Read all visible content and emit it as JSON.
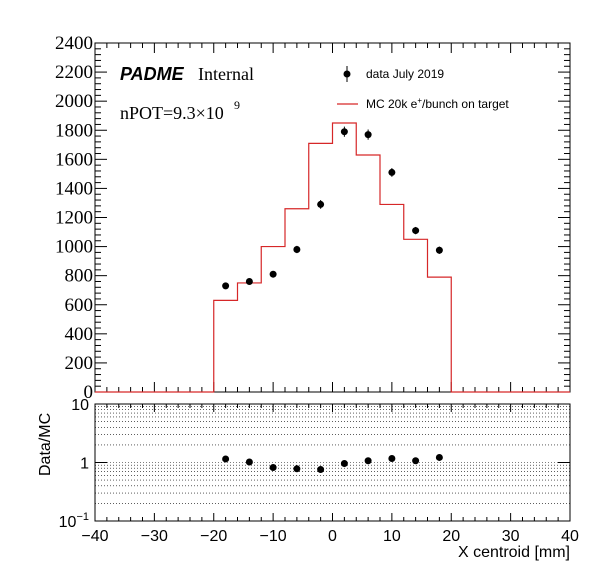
{
  "chart_data": [
    {
      "type": "histogram-with-points",
      "xlim": [
        -40,
        40
      ],
      "ylim": [
        0,
        2400
      ],
      "yticks": [
        0,
        200,
        400,
        600,
        800,
        1000,
        1200,
        1400,
        1600,
        1800,
        2000,
        2200,
        2400
      ],
      "labels": {
        "brand": "PADME",
        "brand_suffix": "Internal",
        "npot_base": "nPOT=9.3×10",
        "npot_exp": "9"
      },
      "legend": [
        {
          "name": "data July 2019",
          "marker": "point",
          "color": "#000000"
        },
        {
          "name_prefix": "MC 20k e",
          "name_sup": "+",
          "name_suffix": "/bunch on target",
          "marker": "line",
          "color": "#d62728"
        }
      ],
      "mc_histogram": {
        "color": "#d62728",
        "bin_edges": [
          -20,
          -16,
          -12,
          -8,
          -4,
          0,
          4,
          8,
          12,
          16,
          20
        ],
        "values": [
          630,
          750,
          1000,
          1260,
          1710,
          1850,
          1630,
          1290,
          1050,
          790
        ]
      },
      "data_points": {
        "color": "#000000",
        "x": [
          -18,
          -14,
          -10,
          -6,
          -2,
          2,
          6,
          10,
          14,
          18
        ],
        "y": [
          730,
          760,
          810,
          980,
          1290,
          1790,
          1770,
          1510,
          1110,
          975
        ],
        "err": [
          20,
          20,
          20,
          25,
          30,
          35,
          35,
          30,
          25,
          25
        ]
      }
    },
    {
      "type": "ratio",
      "ylabel": "Data/MC",
      "xlabel": "X centroid [mm]",
      "xlim": [
        -40,
        40
      ],
      "ylim": [
        0.1,
        10
      ],
      "yscale": "log",
      "ytick_labels": [
        {
          "value": 0.1,
          "base": "10",
          "exp": "−1"
        },
        {
          "value": 1,
          "base": "1",
          "exp": ""
        },
        {
          "value": 10,
          "base": "10",
          "exp": ""
        }
      ],
      "xticks": [
        -40,
        -30,
        -20,
        -10,
        0,
        10,
        20,
        30,
        40
      ],
      "xtick_labels": [
        "−40",
        "−30",
        "−20",
        "−10",
        "0",
        "10",
        "20",
        "30",
        "40"
      ],
      "grid": true,
      "points": {
        "x": [
          -18,
          -14,
          -10,
          -6,
          -2,
          2,
          6,
          10,
          14,
          18
        ],
        "y": [
          1.15,
          1.02,
          0.82,
          0.78,
          0.76,
          0.96,
          1.07,
          1.17,
          1.07,
          1.22
        ]
      }
    }
  ]
}
